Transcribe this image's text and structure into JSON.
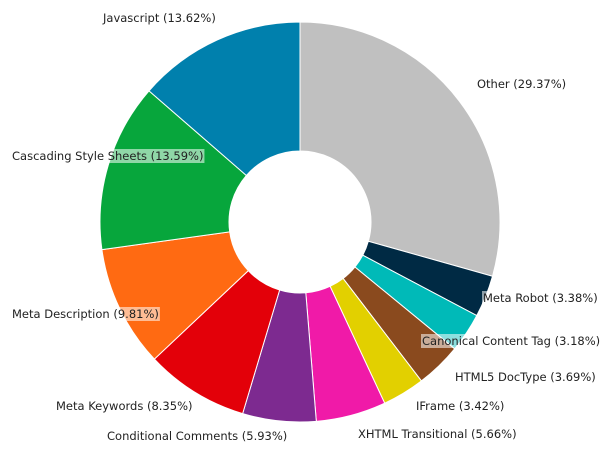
{
  "chart_data": {
    "type": "pie",
    "variant": "donut",
    "title": "",
    "legend": "none",
    "slices": [
      {
        "label": "Other (29.37%)",
        "value": 29.37,
        "color": "#c0c0c0"
      },
      {
        "label": "Meta Robot (3.38%)",
        "value": 3.38,
        "color": "#002a44"
      },
      {
        "label": "Canonical Content Tag (3.18%)",
        "value": 3.18,
        "color": "#00bab8"
      },
      {
        "label": "HTML5 DocType (3.69%)",
        "value": 3.69,
        "color": "#8a4a1e"
      },
      {
        "label": "IFrame (3.42%)",
        "value": 3.42,
        "color": "#e2d000"
      },
      {
        "label": "XHTML Transitional (5.66%)",
        "value": 5.66,
        "color": "#f01aa8"
      },
      {
        "label": "Conditional Comments (5.93%)",
        "value": 5.93,
        "color": "#7d2a90"
      },
      {
        "label": "Meta Keywords (8.35%)",
        "value": 8.35,
        "color": "#e30009"
      },
      {
        "label": "Meta Description (9.81%)",
        "value": 9.81,
        "color": "#ff6a12"
      },
      {
        "label": "Cascading Style Sheets (13.59%)",
        "value": 13.59,
        "color": "#07a63c"
      },
      {
        "label": "Javascript (13.62%)",
        "value": 13.62,
        "color": "#0080ad"
      }
    ]
  }
}
